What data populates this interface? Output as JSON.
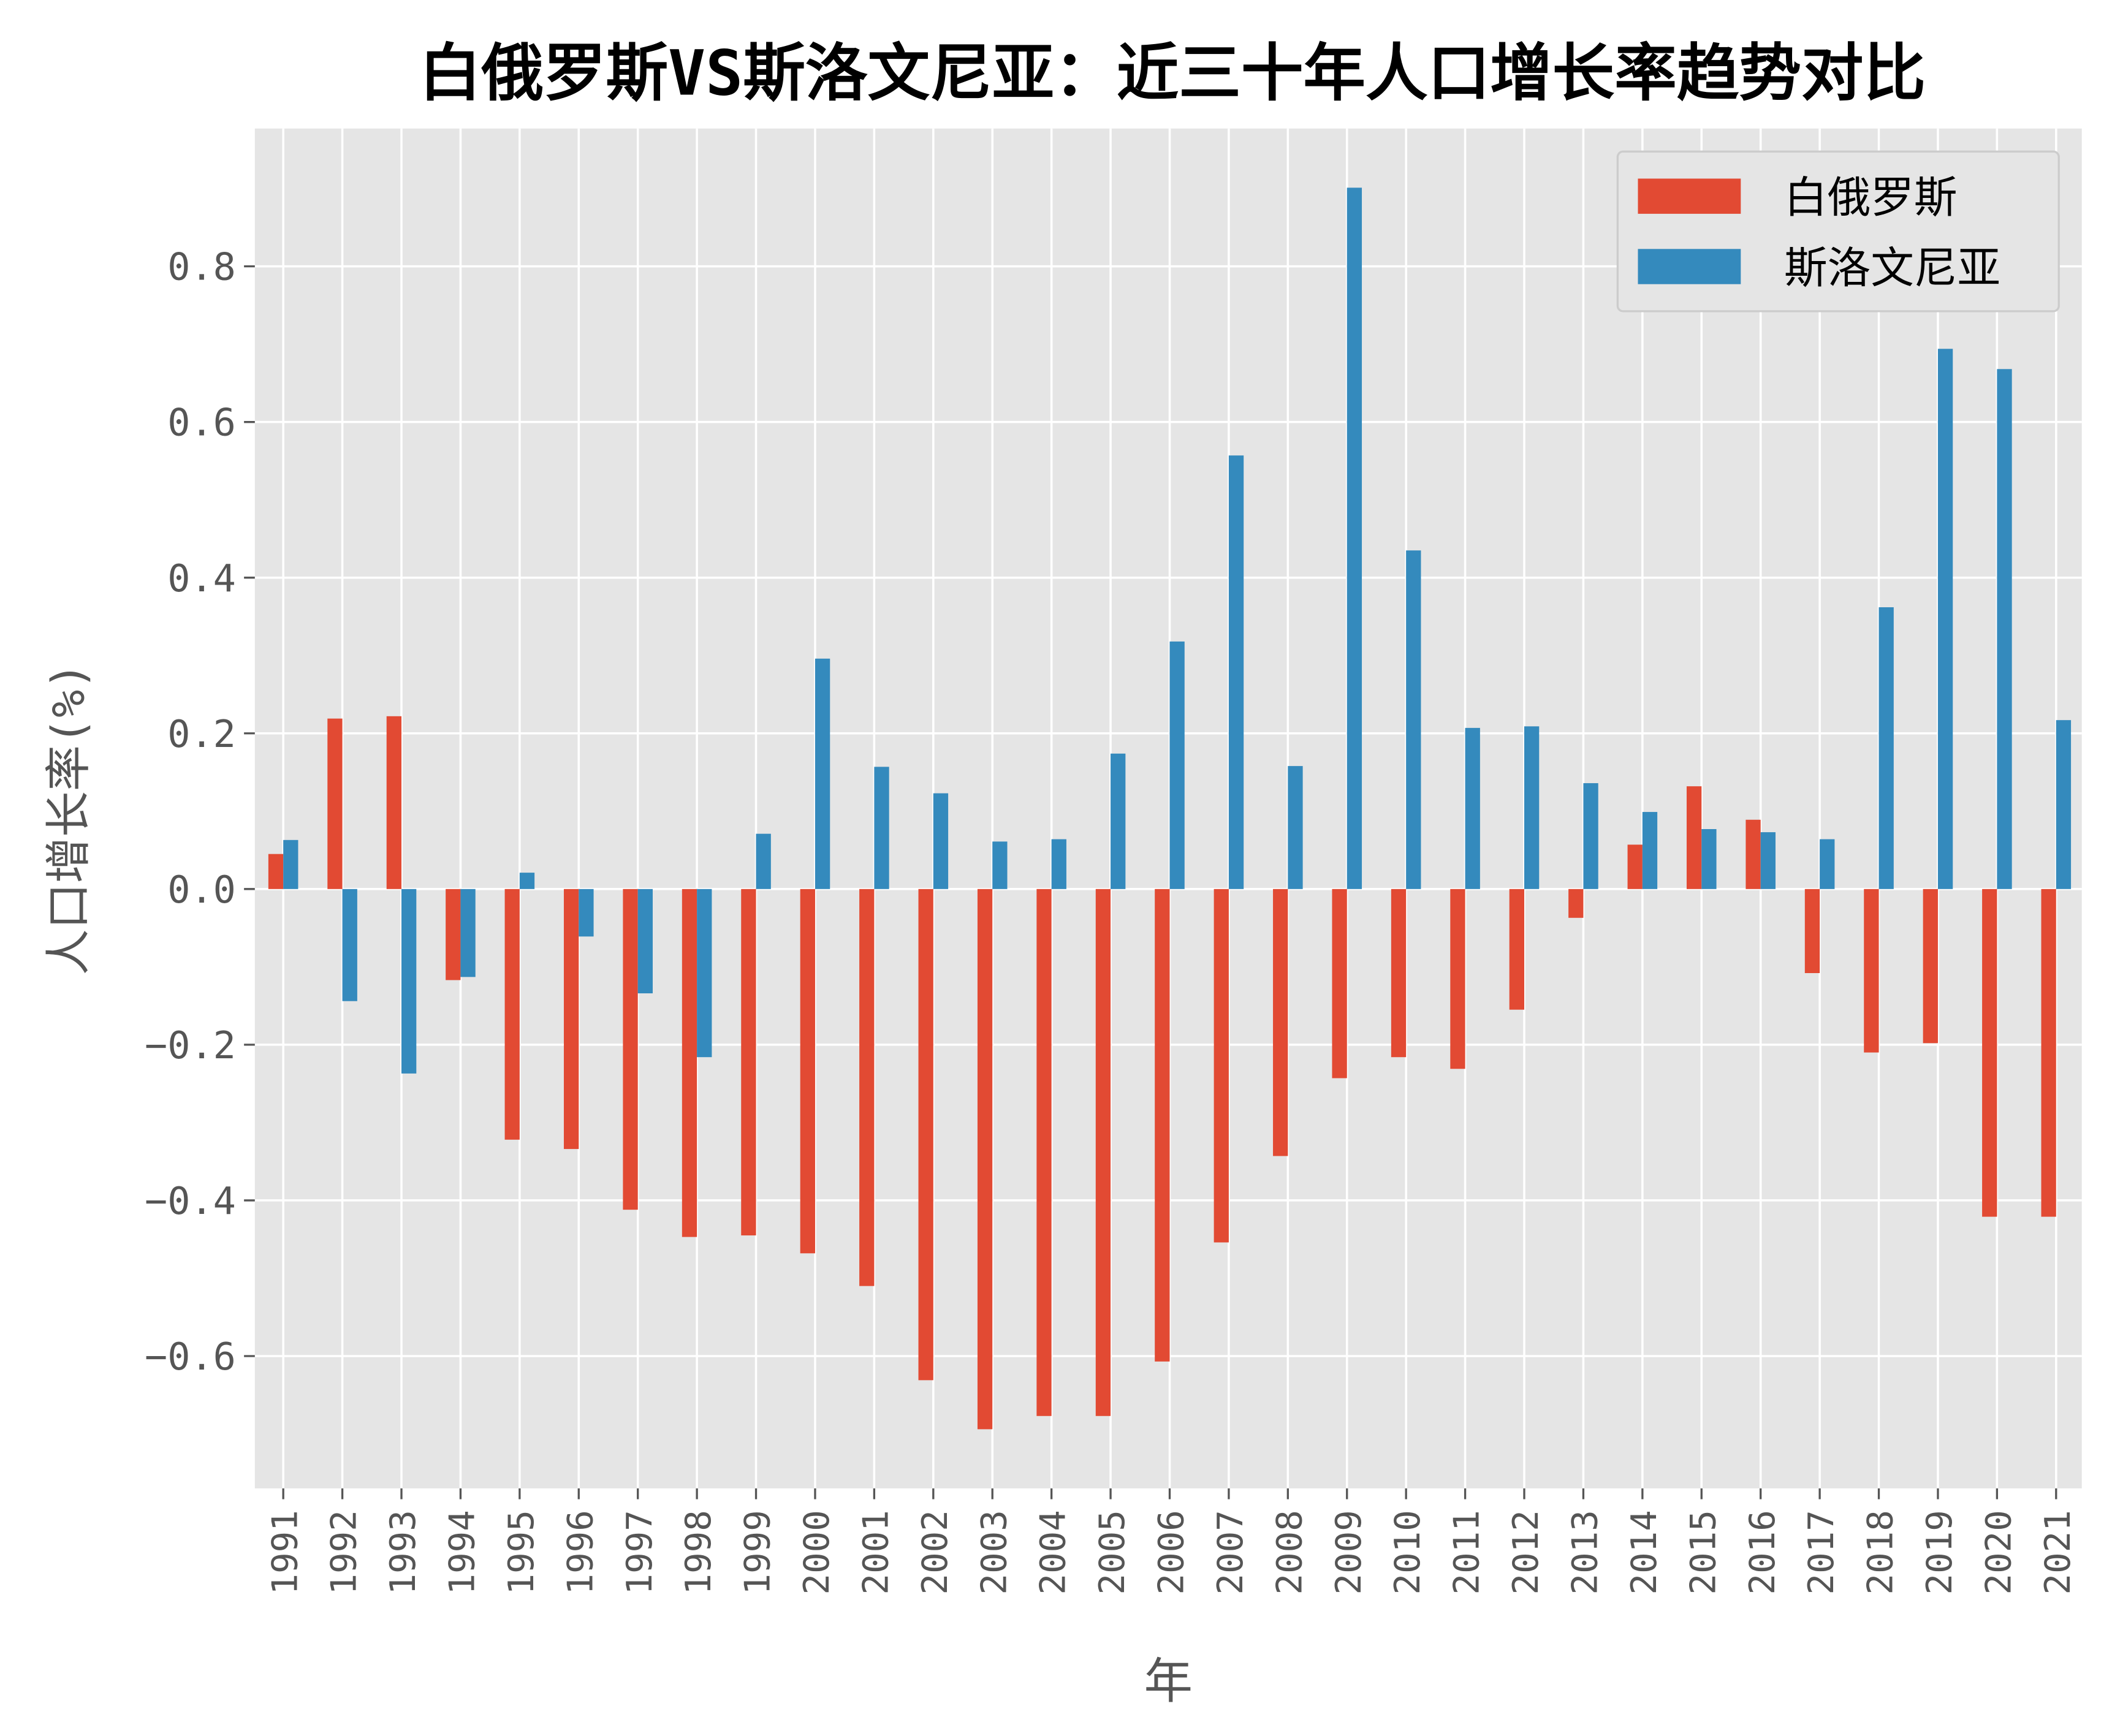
{
  "chart_data": {
    "type": "bar",
    "title": "白俄罗斯VS斯洛文尼亚：近三十年人口增长率趋势对比",
    "xlabel": "年",
    "ylabel": "人口增长率(%)",
    "ylim": [
      -0.77,
      0.977
    ],
    "yticks": [
      -0.6,
      -0.4,
      -0.2,
      0.0,
      0.2,
      0.4,
      0.6,
      0.8
    ],
    "ytick_labels": [
      "−0.6",
      "−0.4",
      "−0.2",
      "0.0",
      "0.2",
      "0.4",
      "0.6",
      "0.8"
    ],
    "grid": true,
    "legend_position": "top-right",
    "categories": [
      "1991",
      "1992",
      "1993",
      "1994",
      "1995",
      "1996",
      "1997",
      "1998",
      "1999",
      "2000",
      "2001",
      "2002",
      "2003",
      "2004",
      "2005",
      "2006",
      "2007",
      "2008",
      "2009",
      "2010",
      "2011",
      "2012",
      "2013",
      "2014",
      "2015",
      "2016",
      "2017",
      "2018",
      "2019",
      "2020",
      "2021"
    ],
    "series": [
      {
        "name": "白俄罗斯",
        "color": "#E24A33",
        "values": [
          0.045,
          0.219,
          0.222,
          -0.117,
          -0.322,
          -0.334,
          -0.412,
          -0.447,
          -0.445,
          -0.468,
          -0.51,
          -0.631,
          -0.694,
          -0.677,
          -0.677,
          -0.607,
          -0.454,
          -0.343,
          -0.243,
          -0.216,
          -0.231,
          -0.155,
          -0.037,
          0.057,
          0.132,
          0.089,
          -0.108,
          -0.21,
          -0.198,
          -0.421,
          -0.421
        ]
      },
      {
        "name": "斯洛文尼亚",
        "color": "#348ABD",
        "values": [
          0.063,
          -0.144,
          -0.237,
          -0.113,
          0.021,
          -0.061,
          -0.134,
          -0.216,
          0.071,
          0.296,
          0.157,
          0.123,
          0.061,
          0.064,
          0.174,
          0.318,
          0.557,
          0.158,
          0.901,
          0.435,
          0.207,
          0.209,
          0.136,
          0.099,
          0.077,
          0.073,
          0.064,
          0.362,
          0.694,
          0.668,
          0.217
        ]
      }
    ],
    "background": "#E5E5E5"
  }
}
